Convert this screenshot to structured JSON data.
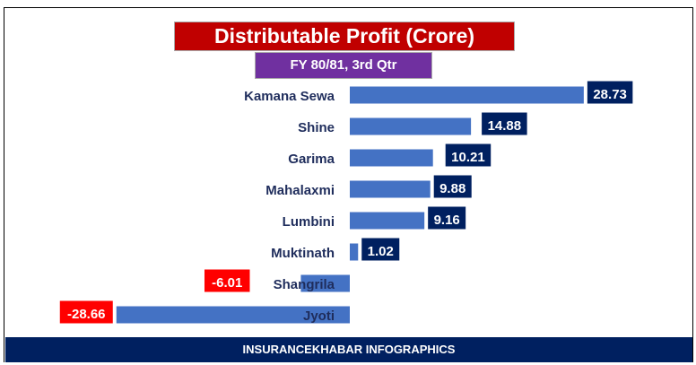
{
  "chart_data": {
    "type": "bar",
    "orientation": "horizontal",
    "title": "Distributable Profit (Crore)",
    "subtitle": "FY 80/81, 3rd Qtr",
    "categories": [
      "Kamana Sewa",
      "Shine",
      "Garima",
      "Mahalaxmi",
      "Lumbini",
      "Muktinath",
      "Shangrila",
      "Jyoti"
    ],
    "values": [
      28.73,
      14.88,
      10.21,
      9.88,
      9.16,
      1.02,
      -6.01,
      -28.66
    ],
    "labels": [
      "28.73",
      "14.88",
      "10.21",
      "9.88",
      "9.16",
      "1.02",
      "-6.01",
      "-28.66"
    ],
    "xlabel": "",
    "ylabel": "",
    "grid": false,
    "colors": {
      "bar": "#4472c4",
      "positive_label": "#002060",
      "negative_label": "#ff0000",
      "category": "#1f2d5c"
    }
  },
  "footer": "INSURANCEKHABAR INFOGRAPHICS"
}
